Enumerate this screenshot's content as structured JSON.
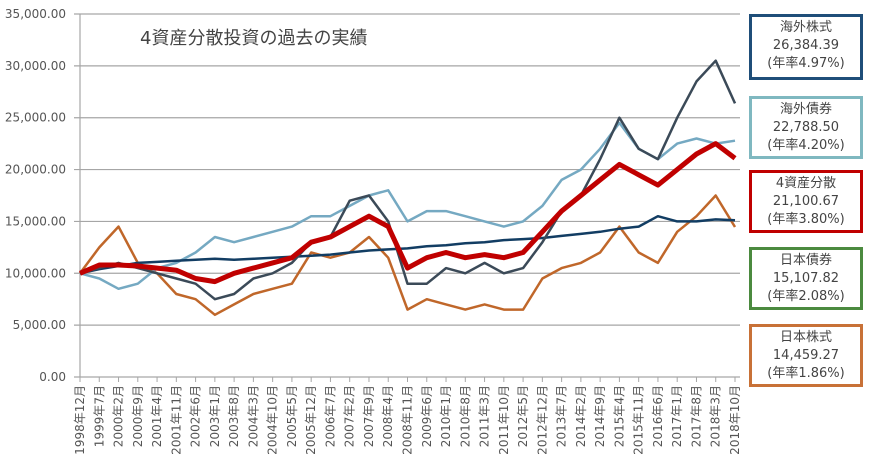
{
  "chart_data": {
    "type": "line",
    "title": "4資産分散投資の過去の実績",
    "xlabel": "",
    "ylabel": "",
    "ylim": [
      0,
      35000
    ],
    "yticks": [
      "0.00",
      "5,000.00",
      "10,000.00",
      "15,000.00",
      "20,000.00",
      "25,000.00",
      "30,000.00",
      "35,000.00"
    ],
    "grid": true,
    "x": [
      "1998年12月",
      "1999年7月",
      "2000年2月",
      "2000年9月",
      "2001年4月",
      "2001年11月",
      "2002年6月",
      "2003年1月",
      "2003年8月",
      "2004年3月",
      "2004年10月",
      "2005年5月",
      "2005年12月",
      "2006年7月",
      "2007年2月",
      "2007年9月",
      "2008年4月",
      "2008年11月",
      "2009年6月",
      "2010年1月",
      "2010年8月",
      "2011年3月",
      "2011年10月",
      "2012年5月",
      "2012年12月",
      "2013年7月",
      "2014年2月",
      "2014年9月",
      "2015年4月",
      "2015年11月",
      "2016年6月",
      "2017年1月",
      "2017年8月",
      "2018年3月",
      "2018年10月"
    ],
    "series": [
      {
        "name": "日本株式",
        "color": "#c0672a",
        "width": 2.5,
        "values": [
          10000,
          12500,
          14500,
          11000,
          10000,
          8000,
          7500,
          6000,
          7000,
          8000,
          8500,
          9000,
          12000,
          11500,
          12000,
          13500,
          11500,
          6500,
          7500,
          7000,
          6500,
          7000,
          6500,
          6500,
          9500,
          10500,
          11000,
          12000,
          14500,
          12000,
          11000,
          14000,
          15500,
          17500,
          14459
        ]
      },
      {
        "name": "海外債券",
        "color": "#75a9c2",
        "width": 2.5,
        "values": [
          10000,
          9500,
          8500,
          9000,
          10500,
          11000,
          12000,
          13500,
          13000,
          13500,
          14000,
          14500,
          15500,
          15500,
          16500,
          17500,
          18000,
          15000,
          16000,
          16000,
          15500,
          15000,
          14500,
          15000,
          16500,
          19000,
          20000,
          22000,
          24500,
          22000,
          21000,
          22500,
          23000,
          22500,
          22788
        ]
      },
      {
        "name": "日本債券",
        "color": "#123d63",
        "width": 2.5,
        "values": [
          10000,
          10400,
          10700,
          11000,
          11100,
          11200,
          11300,
          11400,
          11300,
          11400,
          11500,
          11600,
          11700,
          11800,
          12000,
          12200,
          12300,
          12400,
          12600,
          12700,
          12900,
          13000,
          13200,
          13300,
          13400,
          13600,
          13800,
          14000,
          14300,
          14500,
          15500,
          15000,
          15000,
          15200,
          15108
        ]
      },
      {
        "name": "海外株式",
        "color": "#3b4a58",
        "width": 2.5,
        "values": [
          10000,
          10500,
          11000,
          10500,
          10000,
          9500,
          9000,
          7500,
          8000,
          9500,
          10000,
          11000,
          13000,
          13500,
          17000,
          17500,
          15000,
          9000,
          9000,
          10500,
          10000,
          11000,
          10000,
          10500,
          13000,
          16000,
          17500,
          21000,
          25000,
          22000,
          21000,
          25000,
          28500,
          30500,
          26384
        ]
      },
      {
        "name": "4資産分散",
        "color": "#c00000",
        "width": 5,
        "values": [
          10000,
          10800,
          10800,
          10700,
          10500,
          10300,
          9500,
          9200,
          10000,
          10500,
          11000,
          11500,
          13000,
          13500,
          14500,
          15500,
          14500,
          10500,
          11500,
          12000,
          11500,
          11800,
          11500,
          12000,
          14000,
          16000,
          17500,
          19000,
          20500,
          19500,
          18500,
          20000,
          21500,
          22500,
          21100
        ]
      }
    ],
    "legend": [
      {
        "name": "海外株式",
        "value": "26,384.39",
        "rate": "(年率4.97%)",
        "border": "#1f4e79"
      },
      {
        "name": "海外債券",
        "value": "22,788.50",
        "rate": "(年率4.20%)",
        "border": "#7fb8c0"
      },
      {
        "name": "4資産分散",
        "value": "21,100.67",
        "rate": "(年率3.80%)",
        "border": "#c00000"
      },
      {
        "name": "日本債券",
        "value": "15,107.82",
        "rate": "(年率2.08%)",
        "border": "#4b8a3f"
      },
      {
        "name": "日本株式",
        "value": "14,459.27",
        "rate": "(年率1.86%)",
        "border": "#c87137"
      }
    ]
  }
}
